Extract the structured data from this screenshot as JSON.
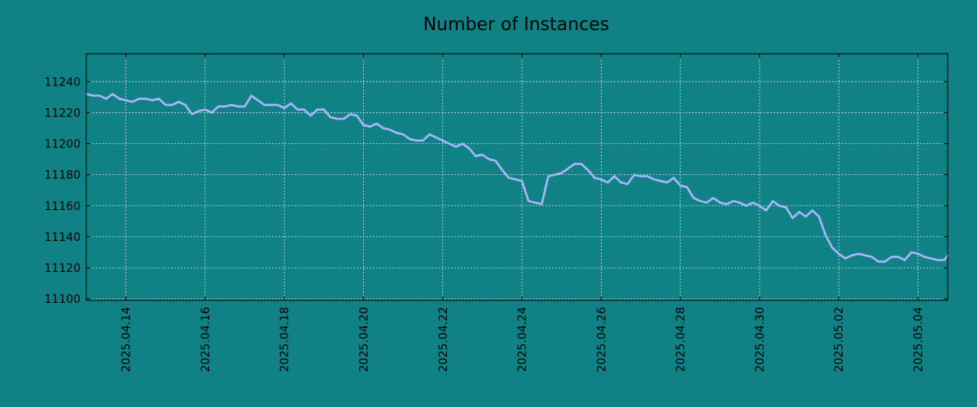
{
  "colors": {
    "background": "#108285",
    "line": "#a9b6ff",
    "grid": "#c8dede",
    "axis": "#000000"
  },
  "chart_data": {
    "type": "line",
    "title": "Number of Instances",
    "xlabel": "",
    "ylabel": "",
    "grid": true,
    "x_axis": "date",
    "xlim": [
      "2025-04-13",
      "2025-05-04 18:00"
    ],
    "ylim": [
      11099,
      11258
    ],
    "yticks": [
      11100,
      11120,
      11140,
      11160,
      11180,
      11200,
      11220,
      11240
    ],
    "xticks": [
      "2025.04.14",
      "2025.04.16",
      "2025.04.18",
      "2025.04.20",
      "2025.04.22",
      "2025.04.24",
      "2025.04.26",
      "2025.04.28",
      "2025.04.30",
      "2025.05.02",
      "2025.05.04"
    ],
    "series": [
      {
        "points": [
          [
            "2025-04-13 00:00",
            11232
          ],
          [
            "2025-04-13 04:00",
            11231
          ],
          [
            "2025-04-13 08:00",
            11231
          ],
          [
            "2025-04-13 12:00",
            11229
          ],
          [
            "2025-04-13 16:00",
            11232
          ],
          [
            "2025-04-13 20:00",
            11229
          ],
          [
            "2025-04-14 00:00",
            11228
          ],
          [
            "2025-04-14 04:00",
            11227
          ],
          [
            "2025-04-14 08:00",
            11229
          ],
          [
            "2025-04-14 12:00",
            11229
          ],
          [
            "2025-04-14 16:00",
            11228
          ],
          [
            "2025-04-14 20:00",
            11229
          ],
          [
            "2025-04-15 00:00",
            11225
          ],
          [
            "2025-04-15 04:00",
            11225
          ],
          [
            "2025-04-15 08:00",
            11227
          ],
          [
            "2025-04-15 12:00",
            11225
          ],
          [
            "2025-04-15 16:00",
            11219
          ],
          [
            "2025-04-15 20:00",
            11221
          ],
          [
            "2025-04-16 00:00",
            11222
          ],
          [
            "2025-04-16 04:00",
            11220
          ],
          [
            "2025-04-16 08:00",
            11224
          ],
          [
            "2025-04-16 12:00",
            11224
          ],
          [
            "2025-04-16 16:00",
            11225
          ],
          [
            "2025-04-16 20:00",
            11224
          ],
          [
            "2025-04-17 00:00",
            11224
          ],
          [
            "2025-04-17 04:00",
            11231
          ],
          [
            "2025-04-17 08:00",
            11228
          ],
          [
            "2025-04-17 12:00",
            11225
          ],
          [
            "2025-04-17 16:00",
            11225
          ],
          [
            "2025-04-17 20:00",
            11225
          ],
          [
            "2025-04-18 00:00",
            11223
          ],
          [
            "2025-04-18 04:00",
            11226
          ],
          [
            "2025-04-18 08:00",
            11222
          ],
          [
            "2025-04-18 12:00",
            11222
          ],
          [
            "2025-04-18 16:00",
            11218
          ],
          [
            "2025-04-18 20:00",
            11222
          ],
          [
            "2025-04-19 00:00",
            11222
          ],
          [
            "2025-04-19 04:00",
            11217
          ],
          [
            "2025-04-19 08:00",
            11216
          ],
          [
            "2025-04-19 12:00",
            11216
          ],
          [
            "2025-04-19 16:00",
            11219
          ],
          [
            "2025-04-19 20:00",
            11218
          ],
          [
            "2025-04-20 00:00",
            11212
          ],
          [
            "2025-04-20 04:00",
            11211
          ],
          [
            "2025-04-20 08:00",
            11213
          ],
          [
            "2025-04-20 12:00",
            11210
          ],
          [
            "2025-04-20 16:00",
            11209
          ],
          [
            "2025-04-20 20:00",
            11207
          ],
          [
            "2025-04-21 00:00",
            11206
          ],
          [
            "2025-04-21 04:00",
            11203
          ],
          [
            "2025-04-21 08:00",
            11202
          ],
          [
            "2025-04-21 12:00",
            11202
          ],
          [
            "2025-04-21 16:00",
            11206
          ],
          [
            "2025-04-21 20:00",
            11204
          ],
          [
            "2025-04-22 00:00",
            11202
          ],
          [
            "2025-04-22 04:00",
            11200
          ],
          [
            "2025-04-22 08:00",
            11198
          ],
          [
            "2025-04-22 12:00",
            11200
          ],
          [
            "2025-04-22 16:00",
            11197
          ],
          [
            "2025-04-22 20:00",
            11192
          ],
          [
            "2025-04-23 00:00",
            11193
          ],
          [
            "2025-04-23 04:00",
            11190
          ],
          [
            "2025-04-23 08:00",
            11189
          ],
          [
            "2025-04-23 12:00",
            11183
          ],
          [
            "2025-04-23 16:00",
            11178
          ],
          [
            "2025-04-23 20:00",
            11177
          ],
          [
            "2025-04-24 00:00",
            11176
          ],
          [
            "2025-04-24 04:00",
            11163
          ],
          [
            "2025-04-24 08:00",
            11162
          ],
          [
            "2025-04-24 12:00",
            11161
          ],
          [
            "2025-04-24 16:00",
            11179
          ],
          [
            "2025-04-24 20:00",
            11180
          ],
          [
            "2025-04-25 00:00",
            11181
          ],
          [
            "2025-04-25 04:00",
            11184
          ],
          [
            "2025-04-25 08:00",
            11187
          ],
          [
            "2025-04-25 12:00",
            11187
          ],
          [
            "2025-04-25 16:00",
            11183
          ],
          [
            "2025-04-25 20:00",
            11178
          ],
          [
            "2025-04-26 00:00",
            11177
          ],
          [
            "2025-04-26 04:00",
            11175
          ],
          [
            "2025-04-26 08:00",
            11179
          ],
          [
            "2025-04-26 12:00",
            11175
          ],
          [
            "2025-04-26 16:00",
            11174
          ],
          [
            "2025-04-26 20:00",
            11180
          ],
          [
            "2025-04-27 00:00",
            11179
          ],
          [
            "2025-04-27 04:00",
            11179
          ],
          [
            "2025-04-27 08:00",
            11177
          ],
          [
            "2025-04-27 12:00",
            11176
          ],
          [
            "2025-04-27 16:00",
            11175
          ],
          [
            "2025-04-27 20:00",
            11178
          ],
          [
            "2025-04-28 00:00",
            11173
          ],
          [
            "2025-04-28 04:00",
            11172
          ],
          [
            "2025-04-28 08:00",
            11165
          ],
          [
            "2025-04-28 12:00",
            11163
          ],
          [
            "2025-04-28 16:00",
            11162
          ],
          [
            "2025-04-28 20:00",
            11165
          ],
          [
            "2025-04-29 00:00",
            11162
          ],
          [
            "2025-04-29 04:00",
            11161
          ],
          [
            "2025-04-29 08:00",
            11163
          ],
          [
            "2025-04-29 12:00",
            11162
          ],
          [
            "2025-04-29 16:00",
            11160
          ],
          [
            "2025-04-29 20:00",
            11162
          ],
          [
            "2025-04-30 00:00",
            11160
          ],
          [
            "2025-04-30 04:00",
            11157
          ],
          [
            "2025-04-30 08:00",
            11163
          ],
          [
            "2025-04-30 12:00",
            11160
          ],
          [
            "2025-04-30 16:00",
            11159
          ],
          [
            "2025-04-30 20:00",
            11152
          ],
          [
            "2025-05-01 00:00",
            11156
          ],
          [
            "2025-05-01 04:00",
            11153
          ],
          [
            "2025-05-01 08:00",
            11157
          ],
          [
            "2025-05-01 12:00",
            11153
          ],
          [
            "2025-05-01 16:00",
            11141
          ],
          [
            "2025-05-01 20:00",
            11133
          ],
          [
            "2025-05-02 00:00",
            11129
          ],
          [
            "2025-05-02 04:00",
            11126
          ],
          [
            "2025-05-02 08:00",
            11128
          ],
          [
            "2025-05-02 12:00",
            11129
          ],
          [
            "2025-05-02 16:00",
            11128
          ],
          [
            "2025-05-02 20:00",
            11127
          ],
          [
            "2025-05-03 00:00",
            11124
          ],
          [
            "2025-05-03 04:00",
            11124
          ],
          [
            "2025-05-03 08:00",
            11127
          ],
          [
            "2025-05-03 12:00",
            11127
          ],
          [
            "2025-05-03 16:00",
            11125
          ],
          [
            "2025-05-03 20:00",
            11130
          ],
          [
            "2025-05-04 00:00",
            11129
          ],
          [
            "2025-05-04 04:00",
            11127
          ],
          [
            "2025-05-04 08:00",
            11126
          ],
          [
            "2025-05-04 12:00",
            11125
          ],
          [
            "2025-05-04 16:00",
            11125
          ],
          [
            "2025-05-04 18:00",
            11128
          ]
        ]
      }
    ]
  }
}
